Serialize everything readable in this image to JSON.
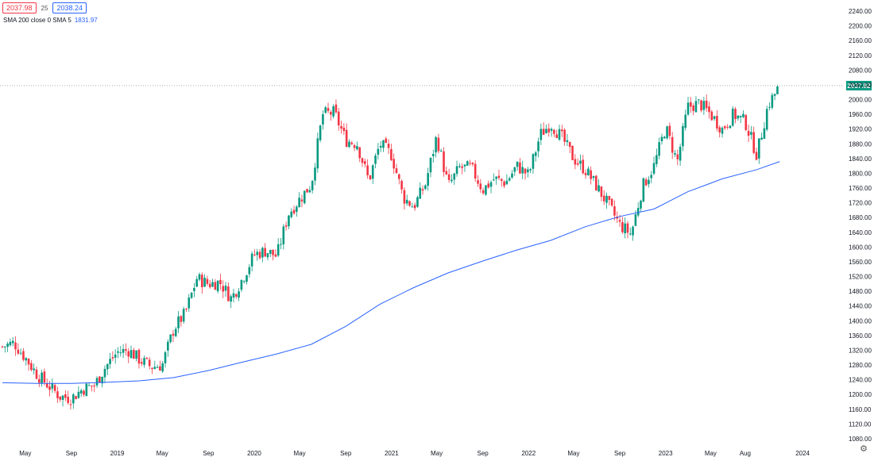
{
  "header": {
    "bid": "2037.98",
    "spread": "25",
    "ask": "2038.24"
  },
  "indicator": {
    "label": "SMA 200 close 0 SMA 5",
    "value": "1831.97"
  },
  "last_price_label": "2037.82",
  "colors": {
    "up": "#089981",
    "down": "#f23645",
    "sma": "#2962ff",
    "price_line": "#9ea1a9",
    "last_price_bg": "#089981"
  },
  "settings_icon": "gear-icon",
  "chart_data": {
    "type": "candlestick",
    "title": "",
    "xlabel": "",
    "ylabel": "",
    "ylim": [
      1060,
      2260
    ],
    "y_ticks": [
      "2240.00",
      "2200.00",
      "2160.00",
      "2120.00",
      "2080.00",
      "2040.00",
      "2000.00",
      "1960.00",
      "1920.00",
      "1880.00",
      "1840.00",
      "1800.00",
      "1760.00",
      "1720.00",
      "1680.00",
      "1640.00",
      "1600.00",
      "1560.00",
      "1520.00",
      "1480.00",
      "1440.00",
      "1400.00",
      "1360.00",
      "1320.00",
      "1280.00",
      "1240.00",
      "1200.00",
      "1160.00",
      "1120.00",
      "1080.00"
    ],
    "x_ticks": [
      {
        "label": "May",
        "date": "2018-05-01"
      },
      {
        "label": "Sep",
        "date": "2018-09-01"
      },
      {
        "label": "2019",
        "date": "2019-01-01"
      },
      {
        "label": "May",
        "date": "2019-05-01"
      },
      {
        "label": "Sep",
        "date": "2019-09-01"
      },
      {
        "label": "2020",
        "date": "2020-01-01"
      },
      {
        "label": "May",
        "date": "2020-05-01"
      },
      {
        "label": "Sep",
        "date": "2020-09-01"
      },
      {
        "label": "2021",
        "date": "2021-01-01"
      },
      {
        "label": "May",
        "date": "2021-05-01"
      },
      {
        "label": "Sep",
        "date": "2021-09-01"
      },
      {
        "label": "2022",
        "date": "2022-01-01"
      },
      {
        "label": "May",
        "date": "2022-05-01"
      },
      {
        "label": "Sep",
        "date": "2022-09-01"
      },
      {
        "label": "2023",
        "date": "2023-01-01"
      },
      {
        "label": "May",
        "date": "2023-05-01"
      },
      {
        "label": "Aug",
        "date": "2023-08-01"
      },
      {
        "label": "2024",
        "date": "2024-01-01"
      }
    ],
    "x_range": [
      "2018-03-01",
      "2024-03-01"
    ],
    "close_path": [
      [
        "2018-03-01",
        1330
      ],
      [
        "2018-04-01",
        1340
      ],
      [
        "2018-05-01",
        1300
      ],
      [
        "2018-06-01",
        1255
      ],
      [
        "2018-07-01",
        1225
      ],
      [
        "2018-08-01",
        1195
      ],
      [
        "2018-09-01",
        1190
      ],
      [
        "2018-10-01",
        1215
      ],
      [
        "2018-11-01",
        1225
      ],
      [
        "2018-12-01",
        1275
      ],
      [
        "2019-01-01",
        1315
      ],
      [
        "2019-02-01",
        1320
      ],
      [
        "2019-03-01",
        1295
      ],
      [
        "2019-04-01",
        1275
      ],
      [
        "2019-05-01",
        1280
      ],
      [
        "2019-06-01",
        1380
      ],
      [
        "2019-07-01",
        1420
      ],
      [
        "2019-08-01",
        1515
      ],
      [
        "2019-09-01",
        1500
      ],
      [
        "2019-10-01",
        1505
      ],
      [
        "2019-11-01",
        1460
      ],
      [
        "2019-12-01",
        1515
      ],
      [
        "2020-01-01",
        1580
      ],
      [
        "2020-02-01",
        1590
      ],
      [
        "2020-03-01",
        1575
      ],
      [
        "2020-04-01",
        1690
      ],
      [
        "2020-05-01",
        1730
      ],
      [
        "2020-06-01",
        1770
      ],
      [
        "2020-07-01",
        1960
      ],
      [
        "2020-08-01",
        1965
      ],
      [
        "2020-09-01",
        1890
      ],
      [
        "2020-10-01",
        1880
      ],
      [
        "2020-11-01",
        1780
      ],
      [
        "2020-12-01",
        1880
      ],
      [
        "2021-01-01",
        1850
      ],
      [
        "2021-02-01",
        1735
      ],
      [
        "2021-03-01",
        1710
      ],
      [
        "2021-04-01",
        1770
      ],
      [
        "2021-05-01",
        1900
      ],
      [
        "2021-06-01",
        1765
      ],
      [
        "2021-07-01",
        1815
      ],
      [
        "2021-08-01",
        1815
      ],
      [
        "2021-09-01",
        1755
      ],
      [
        "2021-10-01",
        1785
      ],
      [
        "2021-11-01",
        1775
      ],
      [
        "2021-12-01",
        1820
      ],
      [
        "2022-01-01",
        1795
      ],
      [
        "2022-02-01",
        1905
      ],
      [
        "2022-03-01",
        1935
      ],
      [
        "2022-04-01",
        1895
      ],
      [
        "2022-05-01",
        1840
      ],
      [
        "2022-06-01",
        1810
      ],
      [
        "2022-07-01",
        1765
      ],
      [
        "2022-08-01",
        1715
      ],
      [
        "2022-09-01",
        1660
      ],
      [
        "2022-10-01",
        1635
      ],
      [
        "2022-11-01",
        1765
      ],
      [
        "2022-12-01",
        1820
      ],
      [
        "2023-01-01",
        1925
      ],
      [
        "2023-02-01",
        1830
      ],
      [
        "2023-03-01",
        1980
      ],
      [
        "2023-04-01",
        1990
      ],
      [
        "2023-05-01",
        1960
      ],
      [
        "2023-06-01",
        1920
      ],
      [
        "2023-07-01",
        1960
      ],
      [
        "2023-08-01",
        1940
      ],
      [
        "2023-09-01",
        1850
      ],
      [
        "2023-10-01",
        1985
      ],
      [
        "2023-11-01",
        2037.82
      ]
    ],
    "series": [
      {
        "name": "SMA 200",
        "values": [
          [
            "2018-03-01",
            1232
          ],
          [
            "2018-06-01",
            1230
          ],
          [
            "2018-09-01",
            1230
          ],
          [
            "2018-12-01",
            1233
          ],
          [
            "2019-03-01",
            1237
          ],
          [
            "2019-06-01",
            1246
          ],
          [
            "2019-09-01",
            1265
          ],
          [
            "2019-12-01",
            1288
          ],
          [
            "2020-03-01",
            1310
          ],
          [
            "2020-06-01",
            1336
          ],
          [
            "2020-09-01",
            1385
          ],
          [
            "2020-12-01",
            1445
          ],
          [
            "2021-03-01",
            1490
          ],
          [
            "2021-06-01",
            1530
          ],
          [
            "2021-09-01",
            1562
          ],
          [
            "2021-12-01",
            1592
          ],
          [
            "2022-03-01",
            1618
          ],
          [
            "2022-06-01",
            1655
          ],
          [
            "2022-09-01",
            1683
          ],
          [
            "2022-12-01",
            1703
          ],
          [
            "2023-03-01",
            1750
          ],
          [
            "2023-06-01",
            1785
          ],
          [
            "2023-09-01",
            1810
          ],
          [
            "2023-11-01",
            1831.97
          ]
        ]
      }
    ],
    "last_price": 2037.82,
    "grid": false,
    "legend": "top-left"
  }
}
